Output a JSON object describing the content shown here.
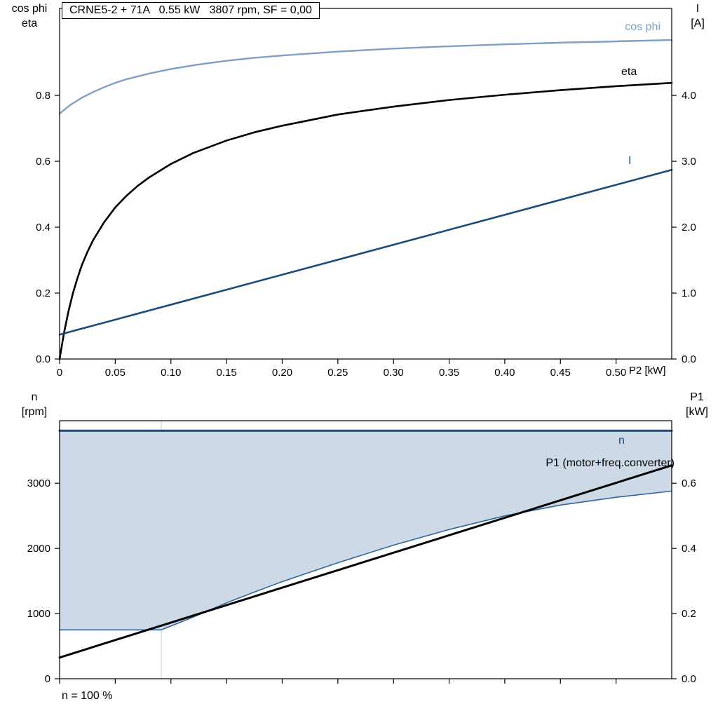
{
  "title_box": {
    "text": "CRNE5-2 + 71A   0.55 kW   3807 rpm, SF = 0,00"
  },
  "colors": {
    "cos_phi": "#7f9fc4",
    "eta": "#000000",
    "current": "#1c4b7d",
    "n_line": "#1c4b7d",
    "p1_line": "#000000",
    "region_fill": "#cdd9e6",
    "region_edge": "#31669c",
    "grid": "#c9cdd2",
    "axis": "#000000"
  },
  "top_chart": {
    "labels": {
      "left_axis_line1": "cos phi",
      "left_axis_line2": "eta",
      "right_axis_line1": "I",
      "right_axis_line2": "[A]",
      "x_axis": "P2 [kW]",
      "curve_cos_phi": "cos phi",
      "curve_eta": "eta",
      "curve_current": "I"
    }
  },
  "bottom_chart": {
    "labels": {
      "left_axis_line1": "n",
      "left_axis_line2": "[rpm]",
      "right_axis_line1": "P1",
      "right_axis_line2": "[kW]",
      "curve_n": "n",
      "curve_p1": "P1 (motor+freq.converter)",
      "footnote": "n = 100 %"
    }
  },
  "chart_data": [
    {
      "type": "line",
      "title": "CRNE5-2 + 71A   0.55 kW   3807 rpm, SF = 0,00",
      "xlabel": "P2 [kW]",
      "xlim": [
        0,
        0.55
      ],
      "x_ticks": [
        0,
        0.05,
        0.1,
        0.15,
        0.2,
        0.25,
        0.3,
        0.35,
        0.4,
        0.45,
        0.5
      ],
      "x_tick_labels": [
        "0",
        "0.05",
        "0.10",
        "0.15",
        "0.20",
        "0.25",
        "0.30",
        "0.35",
        "0.40",
        "0.45",
        "0.50"
      ],
      "left_axis": {
        "label": "cos phi / eta",
        "lim": [
          0,
          1.064
        ],
        "ticks": [
          0,
          0.2,
          0.4,
          0.6,
          0.8
        ],
        "tick_labels": [
          "0.0",
          "0.2",
          "0.4",
          "0.6",
          "0.8"
        ]
      },
      "right_axis": {
        "label": "I [A]",
        "lim": [
          0,
          5.32
        ],
        "ticks": [
          0,
          1,
          2,
          3,
          4
        ],
        "tick_labels": [
          "0.0",
          "1.0",
          "2.0",
          "3.0",
          "4.0"
        ]
      },
      "legend_position": "right-inline",
      "grid": false,
      "series": [
        {
          "name": "cos phi",
          "axis": "left",
          "color_key": "cos_phi",
          "width": 2.4,
          "x": [
            0,
            0.01,
            0.02,
            0.03,
            0.04,
            0.05,
            0.06,
            0.08,
            0.1,
            0.125,
            0.15,
            0.175,
            0.2,
            0.25,
            0.3,
            0.35,
            0.4,
            0.45,
            0.5,
            0.55
          ],
          "y": [
            0.745,
            0.772,
            0.793,
            0.81,
            0.825,
            0.838,
            0.849,
            0.866,
            0.88,
            0.894,
            0.905,
            0.914,
            0.921,
            0.933,
            0.942,
            0.949,
            0.955,
            0.96,
            0.964,
            0.968
          ]
        },
        {
          "name": "eta",
          "axis": "left",
          "color_key": "eta",
          "width": 2.6,
          "x": [
            0,
            0.004,
            0.008,
            0.012,
            0.016,
            0.02,
            0.025,
            0.03,
            0.04,
            0.05,
            0.06,
            0.07,
            0.08,
            0.1,
            0.12,
            0.15,
            0.175,
            0.2,
            0.25,
            0.3,
            0.35,
            0.4,
            0.45,
            0.5,
            0.55
          ],
          "y": [
            0,
            0.08,
            0.145,
            0.2,
            0.245,
            0.285,
            0.325,
            0.36,
            0.415,
            0.46,
            0.495,
            0.525,
            0.55,
            0.592,
            0.625,
            0.663,
            0.688,
            0.708,
            0.742,
            0.766,
            0.786,
            0.802,
            0.816,
            0.828,
            0.838
          ]
        },
        {
          "name": "I",
          "axis": "right",
          "color_key": "current",
          "width": 2.6,
          "x": [
            0,
            0.55
          ],
          "y": [
            0.37,
            2.87
          ]
        }
      ]
    },
    {
      "type": "line",
      "title": "Speed and input power vs P2",
      "xlabel": "",
      "xlim": [
        0,
        0.55
      ],
      "x_ticks": [
        0,
        0.05,
        0.1,
        0.15,
        0.2,
        0.25,
        0.3,
        0.35,
        0.4,
        0.45,
        0.5
      ],
      "x_tick_labels": null,
      "left_axis": {
        "label": "n [rpm]",
        "lim": [
          0,
          3960
        ],
        "ticks": [
          0,
          1000,
          2000,
          3000
        ],
        "tick_labels": [
          "0",
          "1000",
          "2000",
          "3000"
        ]
      },
      "right_axis": {
        "label": "P1 [kW]",
        "lim": [
          0,
          0.792
        ],
        "ticks": [
          0,
          0.2,
          0.4,
          0.6
        ],
        "tick_labels": [
          "0.0",
          "0.2",
          "0.4",
          "0.6"
        ]
      },
      "gridlines_x": [
        0.0914
      ],
      "grid": false,
      "footnote": "n = 100 %",
      "region": {
        "name": "speed-control-range",
        "fill_key": "region_fill",
        "upper": {
          "x": [
            0,
            0.55
          ],
          "y": [
            3807,
            3807
          ]
        },
        "lower": {
          "x": [
            0,
            0.0914,
            0.12,
            0.15,
            0.175,
            0.2,
            0.25,
            0.3,
            0.35,
            0.4,
            0.45,
            0.5,
            0.55
          ],
          "y": [
            750,
            750,
            945,
            1165,
            1330,
            1490,
            1780,
            2050,
            2290,
            2500,
            2665,
            2785,
            2880
          ]
        }
      },
      "series": [
        {
          "name": "n min",
          "axis": "left",
          "color_key": "region_edge",
          "width": 1.6,
          "x": [
            0,
            0.0914,
            0.12,
            0.15,
            0.175,
            0.2,
            0.25,
            0.3,
            0.35,
            0.4,
            0.45,
            0.5,
            0.55
          ],
          "y": [
            750,
            750,
            945,
            1165,
            1330,
            1490,
            1780,
            2050,
            2290,
            2500,
            2665,
            2785,
            2880
          ]
        },
        {
          "name": "n",
          "axis": "left",
          "color_key": "n_line",
          "width": 3,
          "x": [
            0,
            0.55
          ],
          "y": [
            3807,
            3807
          ]
        },
        {
          "name": "P1 (motor+freq.converter)",
          "axis": "right",
          "color_key": "p1_line",
          "width": 3,
          "x": [
            0,
            0.55
          ],
          "y": [
            0.065,
            0.655
          ]
        }
      ]
    }
  ]
}
